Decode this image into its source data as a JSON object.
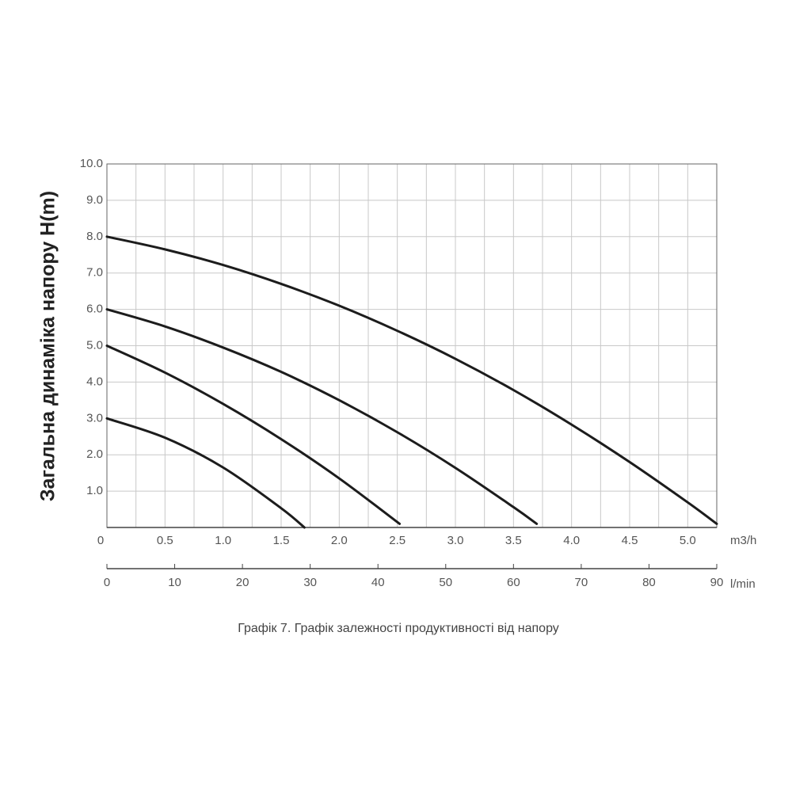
{
  "chart_data": {
    "type": "line",
    "y_label": "Загальна динаміка напору H(m)",
    "x_unit": "m3/h",
    "x2_unit": "l/min",
    "caption": "Графік 7. Графік залежності продуктивності від напору",
    "xlim": [
      0,
      5.25
    ],
    "xticks": [
      0,
      {
        "value": 0.5,
        "label": "0.5"
      },
      {
        "value": 1,
        "label": "1.0"
      },
      {
        "value": 1.5,
        "label": "1.5"
      },
      {
        "value": 2,
        "label": "2.0"
      },
      {
        "value": 2.5,
        "label": "2.5"
      },
      {
        "value": 3,
        "label": "3.0"
      },
      {
        "value": 3.5,
        "label": "3.5"
      },
      {
        "value": 4,
        "label": "4.0"
      },
      {
        "value": 4.5,
        "label": "4.5"
      },
      {
        "value": 5,
        "label": "5.0"
      }
    ],
    "x_minor_ticks": [
      0.25,
      0.75,
      1.25,
      1.75,
      2.25,
      2.75,
      3.25,
      3.75,
      4.25,
      4.75,
      5.25
    ],
    "x2lim": [
      0,
      90
    ],
    "x2ticks": [
      0,
      10,
      20,
      30,
      40,
      50,
      60,
      70,
      80,
      90
    ],
    "ylim": [
      0,
      10
    ],
    "yticks": [
      {
        "value": 1,
        "label": "1.0"
      },
      {
        "value": 2,
        "label": "2.0"
      },
      {
        "value": 3,
        "label": "3.0"
      },
      {
        "value": 4,
        "label": "4.0"
      },
      {
        "value": 5,
        "label": "5.0"
      },
      {
        "value": 6,
        "label": "6.0"
      },
      {
        "value": 7,
        "label": "7.0"
      },
      {
        "value": 8,
        "label": "8.0"
      },
      {
        "value": 9,
        "label": "9.0"
      },
      {
        "value": 10,
        "label": "10.0"
      }
    ],
    "grid": true,
    "color": "#1c1c1c",
    "series": [
      {
        "x": [
          0,
          0.5,
          1.0,
          1.5,
          1.7
        ],
        "values": [
          3,
          2.47,
          1.65,
          0.53,
          0
        ]
      },
      {
        "x": [
          0,
          0.5,
          1.0,
          1.5,
          2.0,
          2.52
        ],
        "values": [
          5,
          4.26,
          3.4,
          2.43,
          1.35,
          0.1
        ]
      },
      {
        "x": [
          0,
          0.5,
          1.0,
          1.5,
          2.0,
          2.5,
          3.0,
          3.5,
          3.7
        ],
        "values": [
          6,
          5.53,
          4.95,
          4.28,
          3.5,
          2.62,
          1.64,
          0.56,
          0.1
        ]
      },
      {
        "x": [
          0,
          0.5,
          1.0,
          1.5,
          2.0,
          2.5,
          3.0,
          3.5,
          4.0,
          4.5,
          5.0,
          5.25
        ],
        "values": [
          8,
          7.65,
          7.22,
          6.7,
          6.1,
          5.41,
          4.64,
          3.78,
          2.83,
          1.8,
          0.69,
          0.1
        ]
      }
    ]
  }
}
